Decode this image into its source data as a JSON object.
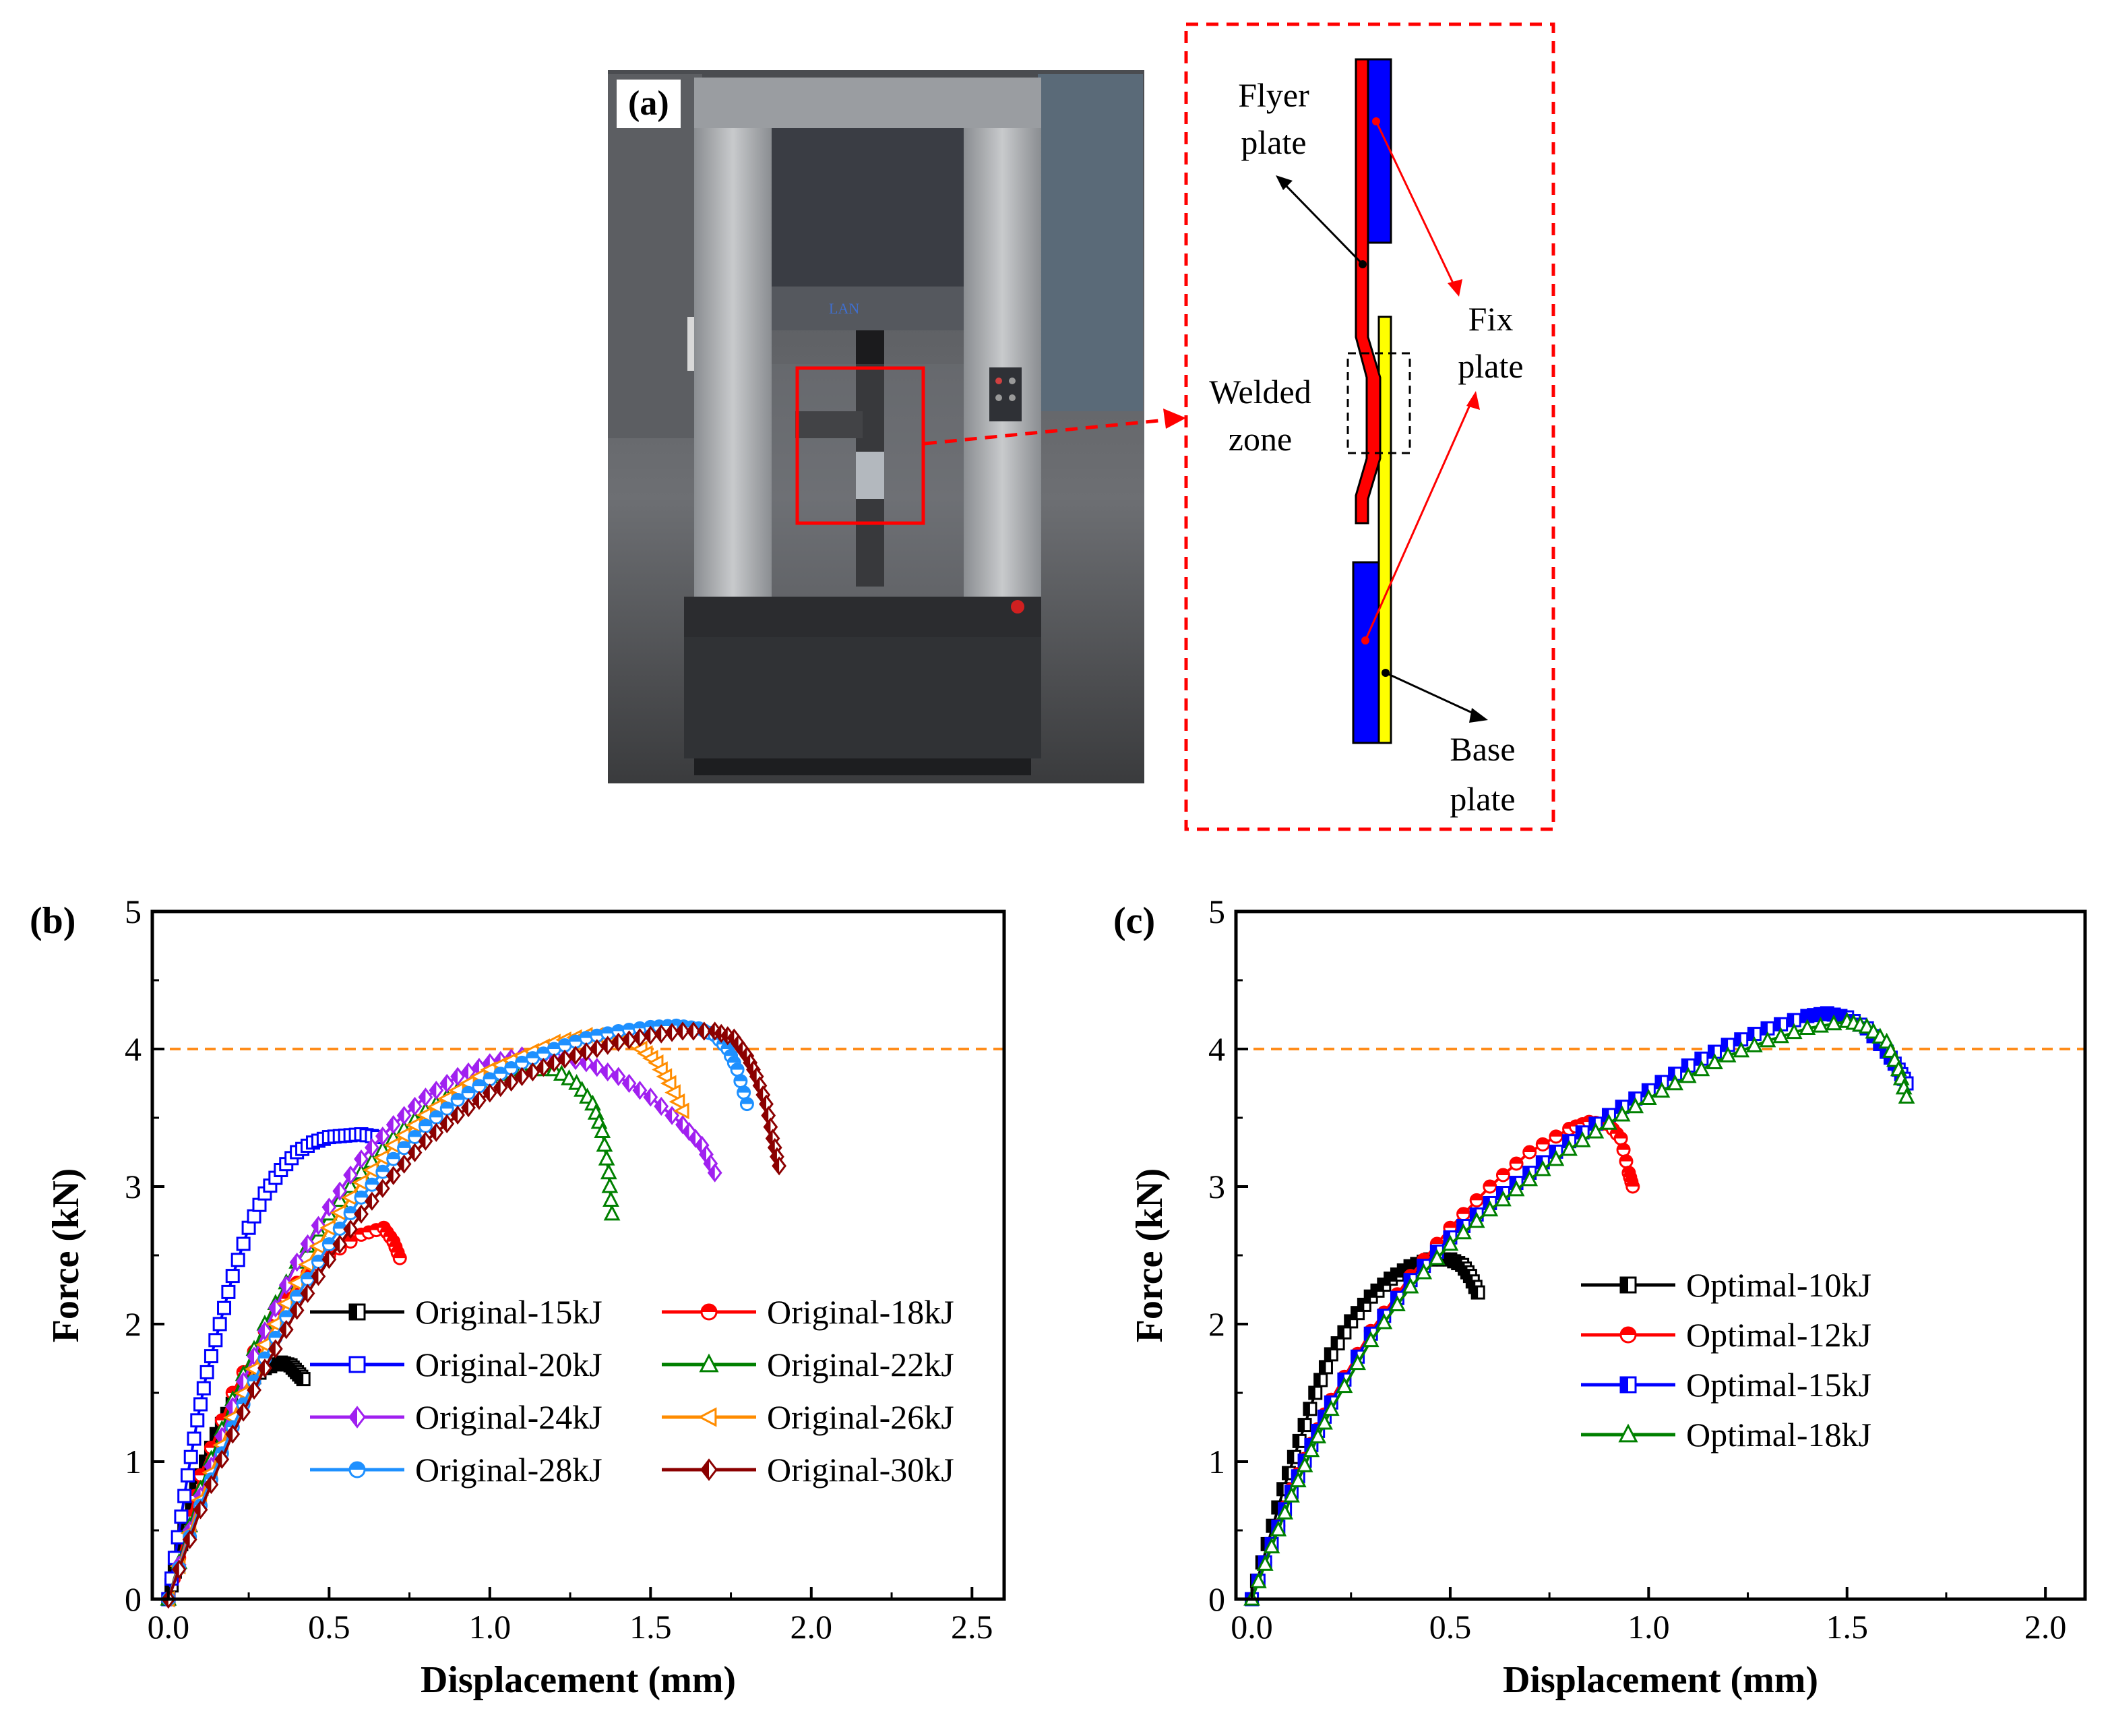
{
  "panel_a": {
    "label": "(a)",
    "diagram_labels": {
      "flyer_plate": [
        "Flyer",
        "plate"
      ],
      "welded_zone": [
        "Welded",
        "zone"
      ],
      "fix_plate": [
        "Fix",
        "plate"
      ],
      "base_plate": [
        "Base",
        "plate"
      ]
    },
    "colors": {
      "flyer": "#ff0000",
      "base": "#ffff00",
      "fix": "#0000ff",
      "callout": "#ff0000"
    }
  },
  "chart_data": [
    {
      "panel_label": "(b)",
      "type": "line",
      "xlabel": "Displacement (mm)",
      "ylabel": "Force (kN)",
      "xlim": [
        -0.05,
        2.6
      ],
      "ylim": [
        0,
        5
      ],
      "xticks": [
        "0.0",
        "0.5",
        "1.0",
        "1.5",
        "2.0",
        "2.5"
      ],
      "yticks": [
        "0",
        "1",
        "2",
        "3",
        "4",
        "5"
      ],
      "reference_line": {
        "y": 4,
        "color": "#ff8c1a",
        "style": "dashed"
      },
      "legend_position": "lower-right",
      "series": [
        {
          "name": "Original-15kJ",
          "color": "#000000",
          "marker": "square",
          "fill": "half",
          "points": [
            [
              0,
              0
            ],
            [
              0.03,
              0.3
            ],
            [
              0.06,
              0.6
            ],
            [
              0.1,
              0.9
            ],
            [
              0.15,
              1.2
            ],
            [
              0.2,
              1.42
            ],
            [
              0.25,
              1.58
            ],
            [
              0.3,
              1.68
            ],
            [
              0.35,
              1.72
            ],
            [
              0.38,
              1.7
            ],
            [
              0.4,
              1.65
            ],
            [
              0.42,
              1.6
            ]
          ]
        },
        {
          "name": "Original-18kJ",
          "color": "#ff0000",
          "marker": "circle",
          "fill": "half",
          "points": [
            [
              0,
              0
            ],
            [
              0.05,
              0.45
            ],
            [
              0.1,
              0.9
            ],
            [
              0.2,
              1.5
            ],
            [
              0.3,
              1.95
            ],
            [
              0.4,
              2.3
            ],
            [
              0.5,
              2.5
            ],
            [
              0.6,
              2.65
            ],
            [
              0.67,
              2.7
            ],
            [
              0.7,
              2.6
            ],
            [
              0.72,
              2.48
            ]
          ]
        },
        {
          "name": "Original-20kJ",
          "color": "#0000ff",
          "marker": "square",
          "fill": "open",
          "points": [
            [
              0,
              0
            ],
            [
              0.03,
              0.45
            ],
            [
              0.06,
              0.9
            ],
            [
              0.09,
              1.3
            ],
            [
              0.12,
              1.65
            ],
            [
              0.16,
              2.0
            ],
            [
              0.2,
              2.35
            ],
            [
              0.25,
              2.7
            ],
            [
              0.3,
              2.95
            ],
            [
              0.35,
              3.12
            ],
            [
              0.4,
              3.25
            ],
            [
              0.45,
              3.32
            ],
            [
              0.5,
              3.36
            ],
            [
              0.55,
              3.37
            ],
            [
              0.6,
              3.38
            ],
            [
              0.65,
              3.36
            ]
          ]
        },
        {
          "name": "Original-22kJ",
          "color": "#008000",
          "marker": "triangle",
          "fill": "open",
          "points": [
            [
              0,
              0
            ],
            [
              0.1,
              0.8
            ],
            [
              0.2,
              1.45
            ],
            [
              0.3,
              2.0
            ],
            [
              0.4,
              2.45
            ],
            [
              0.5,
              2.8
            ],
            [
              0.6,
              3.1
            ],
            [
              0.7,
              3.35
            ],
            [
              0.8,
              3.55
            ],
            [
              0.9,
              3.7
            ],
            [
              1.0,
              3.8
            ],
            [
              1.1,
              3.85
            ],
            [
              1.2,
              3.85
            ],
            [
              1.27,
              3.75
            ],
            [
              1.32,
              3.6
            ],
            [
              1.35,
              3.4
            ],
            [
              1.37,
              3.1
            ],
            [
              1.38,
              2.8
            ]
          ]
        },
        {
          "name": "Original-24kJ",
          "color": "#a020f0",
          "marker": "diamond",
          "fill": "half",
          "points": [
            [
              0,
              0
            ],
            [
              0.1,
              0.75
            ],
            [
              0.2,
              1.4
            ],
            [
              0.3,
              1.95
            ],
            [
              0.4,
              2.45
            ],
            [
              0.5,
              2.85
            ],
            [
              0.6,
              3.2
            ],
            [
              0.7,
              3.45
            ],
            [
              0.8,
              3.65
            ],
            [
              0.9,
              3.8
            ],
            [
              1.0,
              3.9
            ],
            [
              1.1,
              3.95
            ],
            [
              1.2,
              3.95
            ],
            [
              1.3,
              3.9
            ],
            [
              1.4,
              3.8
            ],
            [
              1.5,
              3.65
            ],
            [
              1.6,
              3.45
            ],
            [
              1.66,
              3.3
            ],
            [
              1.7,
              3.1
            ]
          ]
        },
        {
          "name": "Original-26kJ",
          "color": "#ff8c00",
          "marker": "triangle-left",
          "fill": "open",
          "points": [
            [
              0,
              0
            ],
            [
              0.1,
              0.72
            ],
            [
              0.2,
              1.32
            ],
            [
              0.3,
              1.85
            ],
            [
              0.4,
              2.3
            ],
            [
              0.5,
              2.7
            ],
            [
              0.6,
              3.03
            ],
            [
              0.7,
              3.3
            ],
            [
              0.8,
              3.52
            ],
            [
              0.9,
              3.7
            ],
            [
              1.0,
              3.85
            ],
            [
              1.1,
              3.95
            ],
            [
              1.2,
              4.05
            ],
            [
              1.3,
              4.1
            ],
            [
              1.4,
              4.1
            ],
            [
              1.47,
              4.0
            ],
            [
              1.52,
              3.9
            ],
            [
              1.56,
              3.75
            ],
            [
              1.6,
              3.55
            ]
          ]
        },
        {
          "name": "Original-28kJ",
          "color": "#1e90ff",
          "marker": "circle",
          "fill": "half",
          "points": [
            [
              0,
              0
            ],
            [
              0.1,
              0.68
            ],
            [
              0.2,
              1.25
            ],
            [
              0.3,
              1.75
            ],
            [
              0.4,
              2.2
            ],
            [
              0.5,
              2.58
            ],
            [
              0.6,
              2.92
            ],
            [
              0.7,
              3.2
            ],
            [
              0.8,
              3.44
            ],
            [
              0.9,
              3.63
            ],
            [
              1.0,
              3.78
            ],
            [
              1.1,
              3.9
            ],
            [
              1.2,
              4.0
            ],
            [
              1.3,
              4.08
            ],
            [
              1.4,
              4.13
            ],
            [
              1.5,
              4.16
            ],
            [
              1.58,
              4.17
            ],
            [
              1.65,
              4.15
            ],
            [
              1.7,
              4.1
            ],
            [
              1.74,
              4.0
            ],
            [
              1.77,
              3.85
            ],
            [
              1.8,
              3.6
            ]
          ]
        },
        {
          "name": "Original-30kJ",
          "color": "#8b0000",
          "marker": "diamond",
          "fill": "half",
          "points": [
            [
              0,
              0
            ],
            [
              0.1,
              0.65
            ],
            [
              0.2,
              1.2
            ],
            [
              0.3,
              1.68
            ],
            [
              0.4,
              2.1
            ],
            [
              0.5,
              2.47
            ],
            [
              0.6,
              2.8
            ],
            [
              0.7,
              3.08
            ],
            [
              0.8,
              3.33
            ],
            [
              0.9,
              3.52
            ],
            [
              1.0,
              3.68
            ],
            [
              1.1,
              3.8
            ],
            [
              1.2,
              3.9
            ],
            [
              1.3,
              3.98
            ],
            [
              1.4,
              4.05
            ],
            [
              1.5,
              4.1
            ],
            [
              1.6,
              4.13
            ],
            [
              1.7,
              4.13
            ],
            [
              1.76,
              4.08
            ],
            [
              1.8,
              3.95
            ],
            [
              1.83,
              3.8
            ],
            [
              1.86,
              3.6
            ],
            [
              1.88,
              3.35
            ],
            [
              1.9,
              3.15
            ]
          ]
        }
      ]
    },
    {
      "panel_label": "(c)",
      "type": "line",
      "xlabel": "Displacement (mm)",
      "ylabel": "Force (kN)",
      "xlim": [
        -0.04,
        2.1
      ],
      "ylim": [
        0,
        5
      ],
      "xticks": [
        "0.0",
        "0.5",
        "1.0",
        "1.5",
        "2.0"
      ],
      "yticks": [
        "0",
        "1",
        "2",
        "3",
        "4",
        "5"
      ],
      "reference_line": {
        "y": 4,
        "color": "#ff8c1a",
        "style": "dashed"
      },
      "legend_position": "center-right",
      "series": [
        {
          "name": "Optimal-10kJ",
          "color": "#000000",
          "marker": "square",
          "fill": "half",
          "points": [
            [
              0,
              0
            ],
            [
              0.04,
              0.4
            ],
            [
              0.08,
              0.8
            ],
            [
              0.12,
              1.15
            ],
            [
              0.16,
              1.5
            ],
            [
              0.2,
              1.78
            ],
            [
              0.25,
              2.02
            ],
            [
              0.3,
              2.2
            ],
            [
              0.35,
              2.33
            ],
            [
              0.4,
              2.42
            ],
            [
              0.45,
              2.47
            ],
            [
              0.5,
              2.47
            ],
            [
              0.53,
              2.43
            ],
            [
              0.55,
              2.35
            ],
            [
              0.57,
              2.23
            ]
          ]
        },
        {
          "name": "Optimal-12kJ",
          "color": "#ff0000",
          "marker": "circle",
          "fill": "half",
          "points": [
            [
              0,
              0
            ],
            [
              0.05,
              0.4
            ],
            [
              0.1,
              0.8
            ],
            [
              0.15,
              1.13
            ],
            [
              0.2,
              1.45
            ],
            [
              0.3,
              1.95
            ],
            [
              0.4,
              2.35
            ],
            [
              0.5,
              2.7
            ],
            [
              0.6,
              3.0
            ],
            [
              0.7,
              3.25
            ],
            [
              0.8,
              3.42
            ],
            [
              0.85,
              3.47
            ],
            [
              0.9,
              3.45
            ],
            [
              0.93,
              3.35
            ],
            [
              0.95,
              3.1
            ],
            [
              0.96,
              3.0
            ]
          ]
        },
        {
          "name": "Optimal-15kJ",
          "color": "#0000ff",
          "marker": "square",
          "fill": "half",
          "points": [
            [
              0,
              0
            ],
            [
              0.05,
              0.4
            ],
            [
              0.1,
              0.78
            ],
            [
              0.15,
              1.12
            ],
            [
              0.2,
              1.43
            ],
            [
              0.3,
              1.93
            ],
            [
              0.4,
              2.32
            ],
            [
              0.5,
              2.63
            ],
            [
              0.6,
              2.88
            ],
            [
              0.7,
              3.1
            ],
            [
              0.8,
              3.33
            ],
            [
              0.9,
              3.52
            ],
            [
              1.0,
              3.7
            ],
            [
              1.1,
              3.88
            ],
            [
              1.2,
              4.03
            ],
            [
              1.3,
              4.15
            ],
            [
              1.4,
              4.24
            ],
            [
              1.45,
              4.26
            ],
            [
              1.5,
              4.23
            ],
            [
              1.55,
              4.15
            ],
            [
              1.6,
              3.98
            ],
            [
              1.63,
              3.85
            ],
            [
              1.65,
              3.75
            ]
          ]
        },
        {
          "name": "Optimal-18kJ",
          "color": "#008000",
          "marker": "triangle",
          "fill": "open",
          "points": [
            [
              0,
              0
            ],
            [
              0.05,
              0.38
            ],
            [
              0.1,
              0.75
            ],
            [
              0.15,
              1.08
            ],
            [
              0.2,
              1.38
            ],
            [
              0.3,
              1.88
            ],
            [
              0.4,
              2.27
            ],
            [
              0.5,
              2.58
            ],
            [
              0.6,
              2.83
            ],
            [
              0.7,
              3.05
            ],
            [
              0.8,
              3.27
            ],
            [
              0.9,
              3.46
            ],
            [
              1.0,
              3.64
            ],
            [
              1.1,
              3.8
            ],
            [
              1.2,
              3.95
            ],
            [
              1.3,
              4.06
            ],
            [
              1.4,
              4.15
            ],
            [
              1.5,
              4.2
            ],
            [
              1.55,
              4.16
            ],
            [
              1.6,
              4.05
            ],
            [
              1.63,
              3.85
            ],
            [
              1.65,
              3.65
            ]
          ]
        }
      ]
    }
  ]
}
